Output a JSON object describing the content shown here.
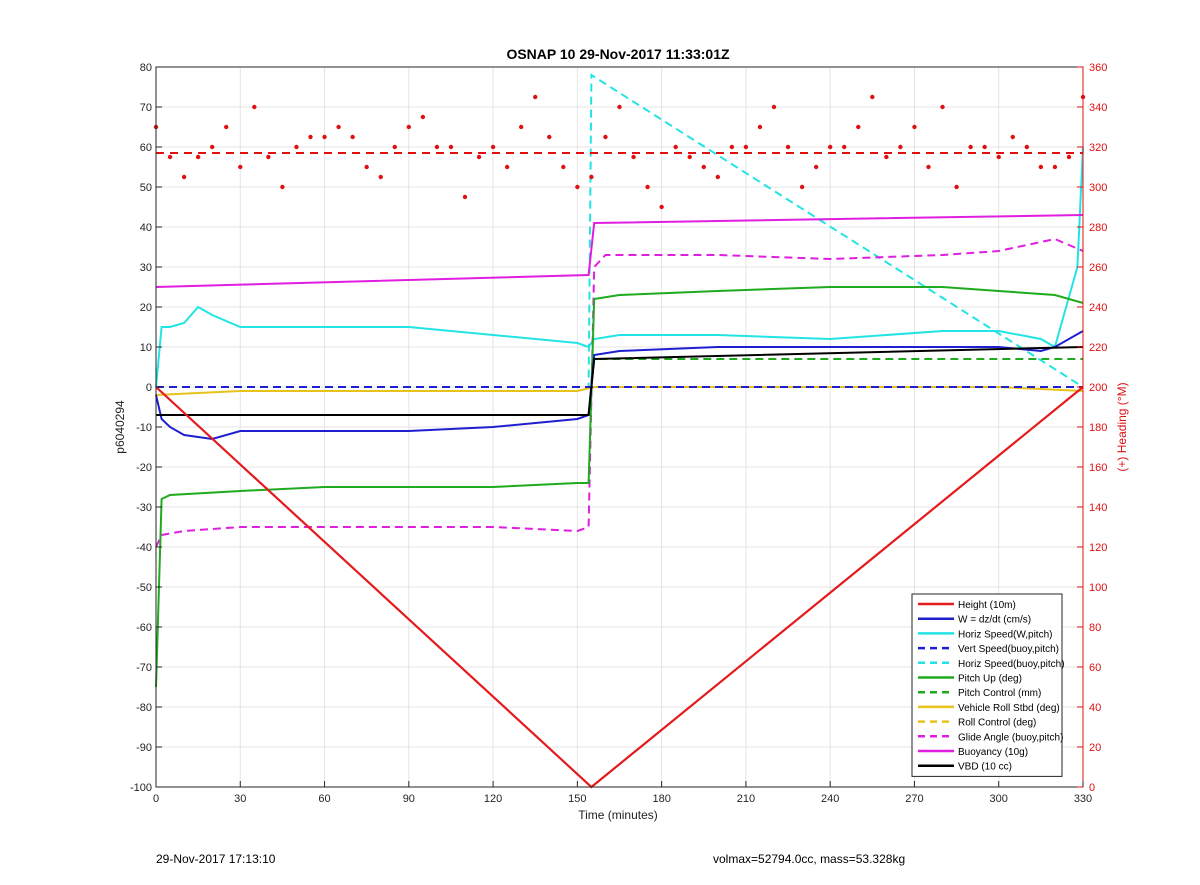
{
  "footer": {
    "timestamp": "29-Nov-2017 17:13:10",
    "summary": "volmax=52794.0cc, mass=53.328kg"
  },
  "colors": {
    "height": "#e41a1c",
    "w": "#1f1fcf",
    "horiz": "#22e4e4",
    "pitch": "#1faa1f",
    "roll": "#e8c21a",
    "glide": "#e01ee0",
    "vbd": "#000000",
    "heading": "#e01010"
  },
  "chart_data": {
    "type": "line",
    "title": "OSNAP 10 29-Nov-2017 11:33:01Z",
    "xlabel": "Time (minutes)",
    "ylabel": "p6040294",
    "y2label": "(+) Heading (°M)",
    "xlim": [
      0,
      330
    ],
    "ylim": [
      -100,
      80
    ],
    "y2lim": [
      0,
      360
    ],
    "xticks": [
      0,
      30,
      60,
      90,
      120,
      150,
      180,
      210,
      240,
      270,
      300,
      330
    ],
    "yticks": [
      -100,
      -90,
      -80,
      -70,
      -60,
      -50,
      -40,
      -30,
      -20,
      -10,
      0,
      10,
      20,
      30,
      40,
      50,
      60,
      70,
      80
    ],
    "y2ticks": [
      0,
      20,
      40,
      60,
      80,
      100,
      120,
      140,
      160,
      180,
      200,
      220,
      240,
      260,
      280,
      300,
      320,
      340,
      360
    ],
    "grid": true,
    "legend_position": "bottom-right",
    "legend": [
      {
        "label": "Height (10m)",
        "color_key": "height",
        "dash": false
      },
      {
        "label": "W = dz/dt (cm/s)",
        "color_key": "w",
        "dash": false
      },
      {
        "label": "Horiz Speed(W,pitch)",
        "color_key": "horiz",
        "dash": false
      },
      {
        "label": "Vert Speed(buoy,pitch)",
        "color_key": "w",
        "dash": true
      },
      {
        "label": "Horiz Speed(buoy,pitch)",
        "color_key": "horiz",
        "dash": true
      },
      {
        "label": "Pitch Up (deg)",
        "color_key": "pitch",
        "dash": false
      },
      {
        "label": "Pitch Control (mm)",
        "color_key": "pitch",
        "dash": true
      },
      {
        "label": "Vehicle Roll Stbd (deg)",
        "color_key": "roll",
        "dash": false
      },
      {
        "label": "Roll Control (deg)",
        "color_key": "roll",
        "dash": true
      },
      {
        "label": "Glide Angle (buoy,pitch)",
        "color_key": "glide",
        "dash": true
      },
      {
        "label": "Buoyancy (10g)",
        "color_key": "glide",
        "dash": false
      },
      {
        "label": "VBD (10 cc)",
        "color_key": "vbd",
        "dash": false
      }
    ],
    "series": [
      {
        "name": "Height (10m)",
        "axis": "left",
        "x": [
          0,
          155,
          330
        ],
        "y": [
          0,
          -100,
          0
        ]
      },
      {
        "name": "W = dz/dt (cm/s)",
        "axis": "left",
        "x": [
          0,
          2,
          5,
          10,
          20,
          30,
          60,
          90,
          120,
          150,
          154,
          156,
          165,
          200,
          240,
          280,
          300,
          315,
          320,
          330
        ],
        "y": [
          -2,
          -8,
          -10,
          -12,
          -13,
          -11,
          -11,
          -11,
          -10,
          -8,
          -7,
          8,
          9,
          10,
          10,
          10,
          10,
          9,
          10,
          14
        ]
      },
      {
        "name": "Horiz Speed(W,pitch)",
        "axis": "left",
        "x": [
          0,
          2,
          5,
          10,
          15,
          20,
          30,
          60,
          90,
          120,
          150,
          154,
          156,
          165,
          200,
          240,
          280,
          300,
          315,
          320,
          328,
          330
        ],
        "y": [
          0,
          15,
          15,
          16,
          20,
          18,
          15,
          15,
          15,
          13,
          11,
          10,
          12,
          13,
          13,
          12,
          14,
          14,
          12,
          10,
          30,
          60
        ]
      },
      {
        "name": "Vert Speed(buoy,pitch)",
        "axis": "left",
        "x": [
          0,
          330
        ],
        "y": [
          0,
          0
        ]
      },
      {
        "name": "Horiz Speed(buoy,pitch)",
        "axis": "left",
        "x": [
          0,
          154,
          155,
          330
        ],
        "y": [
          0,
          0,
          78,
          0
        ]
      },
      {
        "name": "Pitch Up (deg)",
        "axis": "left",
        "x": [
          0,
          2,
          5,
          30,
          60,
          90,
          120,
          150,
          154,
          156,
          165,
          200,
          240,
          280,
          300,
          320,
          330
        ],
        "y": [
          -75,
          -28,
          -27,
          -26,
          -25,
          -25,
          -25,
          -24,
          -24,
          22,
          23,
          24,
          25,
          25,
          24,
          23,
          21
        ]
      },
      {
        "name": "Pitch Control (mm)",
        "axis": "left",
        "x": [
          0,
          154,
          156,
          330
        ],
        "y": [
          -7,
          -7,
          7,
          7
        ]
      },
      {
        "name": "Vehicle Roll Stbd (deg)",
        "axis": "left",
        "x": [
          0,
          30,
          60,
          90,
          120,
          150,
          156,
          200,
          240,
          280,
          300,
          330
        ],
        "y": [
          -2,
          -1,
          -1,
          -1,
          -1,
          -1,
          0,
          0,
          0,
          0,
          0,
          -1
        ]
      },
      {
        "name": "Roll Control (deg)",
        "axis": "left",
        "x": [
          0,
          330
        ],
        "y": [
          0,
          0
        ]
      },
      {
        "name": "Glide Angle (buoy,pitch)",
        "axis": "left",
        "x": [
          0,
          2,
          10,
          30,
          60,
          90,
          120,
          150,
          154,
          156,
          160,
          200,
          240,
          280,
          300,
          320,
          330
        ],
        "y": [
          -40,
          -37,
          -36,
          -35,
          -35,
          -35,
          -35,
          -36,
          -35,
          30,
          33,
          33,
          32,
          33,
          34,
          37,
          34
        ]
      },
      {
        "name": "Buoyancy (10g)",
        "axis": "left",
        "x": [
          0,
          154,
          156,
          330
        ],
        "y": [
          25,
          28,
          41,
          43
        ]
      },
      {
        "name": "VBD (10 cc)",
        "axis": "left",
        "x": [
          0,
          154,
          156,
          330
        ],
        "y": [
          -7,
          -7,
          7,
          10
        ]
      }
    ],
    "heading": {
      "name": "(+) Heading (°M)",
      "axis": "right",
      "mean": 317,
      "x": [
        0,
        5,
        10,
        15,
        20,
        25,
        30,
        35,
        40,
        45,
        50,
        55,
        60,
        65,
        70,
        75,
        80,
        85,
        90,
        95,
        100,
        105,
        110,
        115,
        120,
        125,
        130,
        135,
        140,
        145,
        150,
        155,
        160,
        165,
        170,
        175,
        180,
        185,
        190,
        195,
        200,
        205,
        210,
        215,
        220,
        225,
        230,
        235,
        240,
        245,
        250,
        255,
        260,
        265,
        270,
        275,
        280,
        285,
        290,
        295,
        300,
        305,
        310,
        315,
        320,
        325,
        330
      ],
      "y": [
        330,
        315,
        305,
        315,
        320,
        330,
        310,
        340,
        315,
        300,
        320,
        325,
        325,
        330,
        325,
        310,
        305,
        320,
        330,
        335,
        320,
        320,
        295,
        315,
        320,
        310,
        330,
        345,
        325,
        310,
        300,
        305,
        325,
        340,
        315,
        300,
        290,
        320,
        315,
        310,
        305,
        320,
        320,
        330,
        340,
        320,
        300,
        310,
        320,
        320,
        330,
        345,
        315,
        320,
        330,
        310,
        340,
        300,
        320,
        320,
        315,
        325,
        320,
        310,
        310,
        315,
        345
      ]
    }
  }
}
